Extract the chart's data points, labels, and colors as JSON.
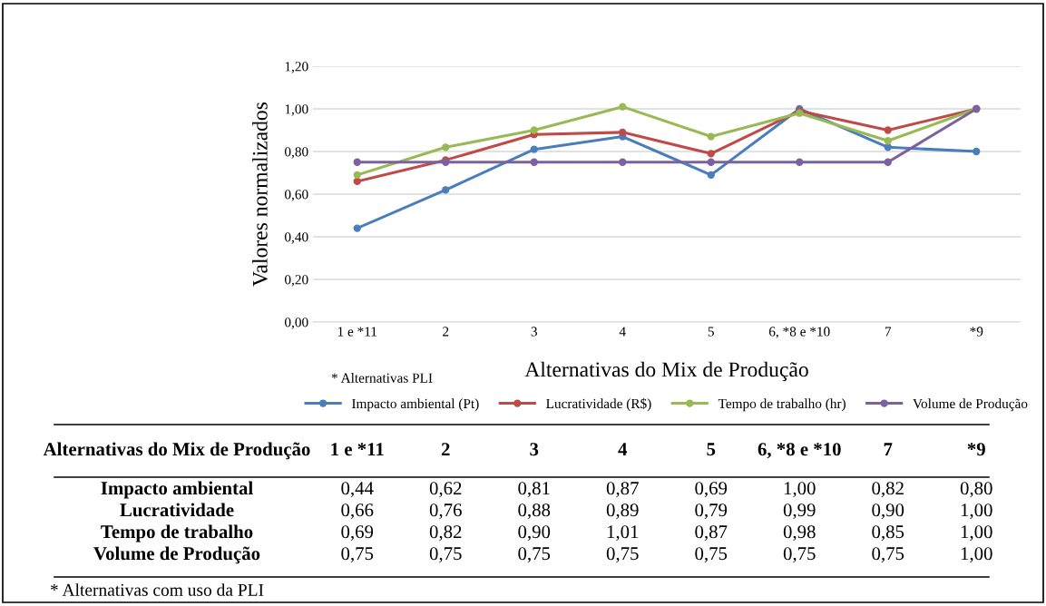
{
  "chart_data": {
    "type": "line",
    "xlabel": "Alternativas do Mix de Produção",
    "ylabel": "Valores normalizados",
    "categories": [
      "1 e *11",
      "2",
      "3",
      "4",
      "5",
      "6, *8 e *10",
      "7",
      "*9"
    ],
    "ylim": [
      0,
      1.2
    ],
    "yticks": [
      {
        "value": 0,
        "label": "0,00"
      },
      {
        "value": 0.2,
        "label": "0,20"
      },
      {
        "value": 0.4,
        "label": "0,40"
      },
      {
        "value": 0.6,
        "label": "0,60"
      },
      {
        "value": 0.8,
        "label": "0,80"
      },
      {
        "value": 1.0,
        "label": "1,00"
      },
      {
        "value": 1.2,
        "label": "1,20"
      }
    ],
    "grid": "y",
    "legend": "bottom",
    "marker": "circle",
    "line_style": "solid",
    "series": [
      {
        "name": "Impacto ambiental (Pt)",
        "color": "#4a7ebb",
        "values": [
          0.44,
          0.62,
          0.81,
          0.87,
          0.69,
          1.0,
          0.82,
          0.8
        ],
        "value_labels": [
          "0,44",
          "0,62",
          "0,81",
          "0,87",
          "0,69",
          "1,00",
          "0,82",
          "0,80"
        ]
      },
      {
        "name": "Lucratividade (R$)",
        "color": "#be4b48",
        "values": [
          0.66,
          0.76,
          0.88,
          0.89,
          0.79,
          0.99,
          0.9,
          1.0
        ],
        "value_labels": [
          "0,66",
          "0,76",
          "0,88",
          "0,89",
          "0,79",
          "0,99",
          "0,90",
          "1,00"
        ]
      },
      {
        "name": "Tempo de trabalho (hr)",
        "color": "#98b954",
        "values": [
          0.69,
          0.82,
          0.9,
          1.01,
          0.87,
          0.98,
          0.85,
          1.0
        ],
        "value_labels": [
          "0,69",
          "0,82",
          "0,90",
          "1,01",
          "0,87",
          "0,98",
          "0,85",
          "1,00"
        ]
      },
      {
        "name": "Volume de Produção",
        "color": "#7d60a0",
        "values": [
          0.75,
          0.75,
          0.75,
          0.75,
          0.75,
          0.75,
          0.75,
          1.0
        ],
        "value_labels": [
          "0,75",
          "0,75",
          "0,75",
          "0,75",
          "0,75",
          "0,75",
          "0,75",
          "1,00"
        ]
      }
    ],
    "annotations": [
      "* Alternativas PLI",
      "Alternativas do Mix de Produção",
      "Impacto ambiental",
      "Lucratividade",
      "Tempo de trabalho",
      "Volume de Produção",
      "* Alternativas com uso da PLI"
    ]
  }
}
